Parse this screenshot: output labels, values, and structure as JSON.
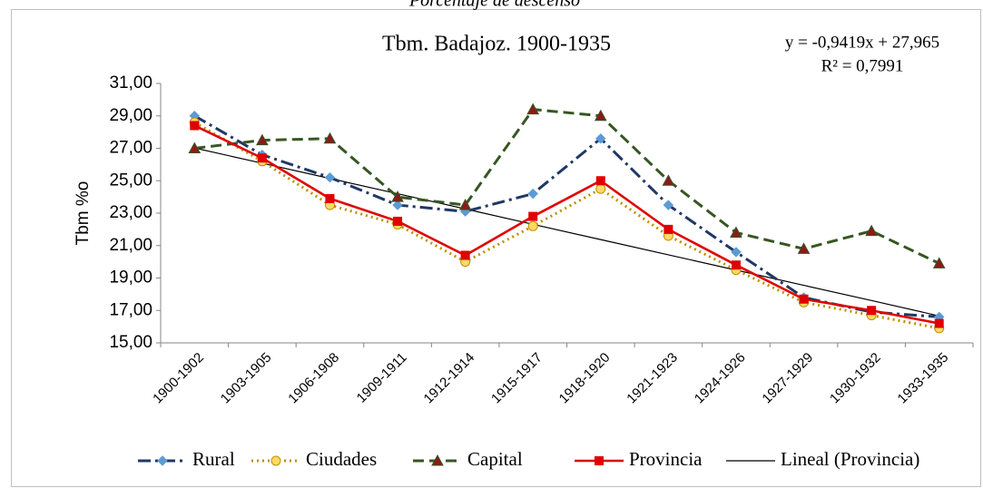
{
  "chart_data": {
    "type": "line",
    "caption": "Porcentaje de descenso",
    "title": "Tbm. Badajoz. 1900-1935",
    "y_label": "Tbm %o",
    "annotations": [
      "y = -0,9419x + 27,965",
      "R² = 0,7991"
    ],
    "categories": [
      "1900-1902",
      "1903-1905",
      "1906-1908",
      "1909-1911",
      "1912-1914",
      "1915-1917",
      "1918-1920",
      "1921-1923",
      "1924-1926",
      "1927-1929",
      "1930-1932",
      "1933-1935"
    ],
    "series": [
      {
        "name": "Rural",
        "color": "#1f3864",
        "marker_color": "#5b9bd5",
        "style": "dash-dot",
        "marker": "diamond",
        "values": [
          29.0,
          26.6,
          25.2,
          23.5,
          23.1,
          24.2,
          27.6,
          23.5,
          20.6,
          17.8,
          16.9,
          16.6
        ]
      },
      {
        "name": "Ciudades",
        "color": "#bf9000",
        "marker_color": "#ffd966",
        "style": "dotted",
        "marker": "circle",
        "values": [
          28.6,
          26.2,
          23.5,
          22.3,
          20.0,
          22.2,
          24.5,
          21.6,
          19.5,
          17.5,
          16.7,
          15.9
        ]
      },
      {
        "name": "Capital",
        "color": "#375623",
        "marker_color": "#8b1a1a",
        "style": "dashed",
        "marker": "triangle",
        "values": [
          27.0,
          27.5,
          27.6,
          24.0,
          23.5,
          29.4,
          29.0,
          25.0,
          21.8,
          20.8,
          21.9,
          19.9
        ]
      },
      {
        "name": "Provincia",
        "color": "#e00000",
        "marker_color": "#e00000",
        "style": "solid",
        "marker": "square",
        "values": [
          28.4,
          26.4,
          23.9,
          22.5,
          20.4,
          22.8,
          25.0,
          22.0,
          19.8,
          17.7,
          17.0,
          16.2
        ]
      },
      {
        "name": "Lineal (Provincia)",
        "color": "#000000",
        "style": "thin",
        "values": [
          27.02,
          26.08,
          25.14,
          24.2,
          23.26,
          22.31,
          21.37,
          20.43,
          19.49,
          18.55,
          17.61,
          16.66
        ]
      }
    ],
    "ylim": [
      15,
      31
    ],
    "yticks": [
      {
        "value": 15,
        "label": "15,00"
      },
      {
        "value": 17,
        "label": "17,00"
      },
      {
        "value": 19,
        "label": "19,00"
      },
      {
        "value": 21,
        "label": "21,00"
      },
      {
        "value": 23,
        "label": "23,00"
      },
      {
        "value": 25,
        "label": "25,00"
      },
      {
        "value": 27,
        "label": "27,00"
      },
      {
        "value": 29,
        "label": "29,00"
      },
      {
        "value": 31,
        "label": "31,00"
      }
    ],
    "legend": "bottom"
  }
}
